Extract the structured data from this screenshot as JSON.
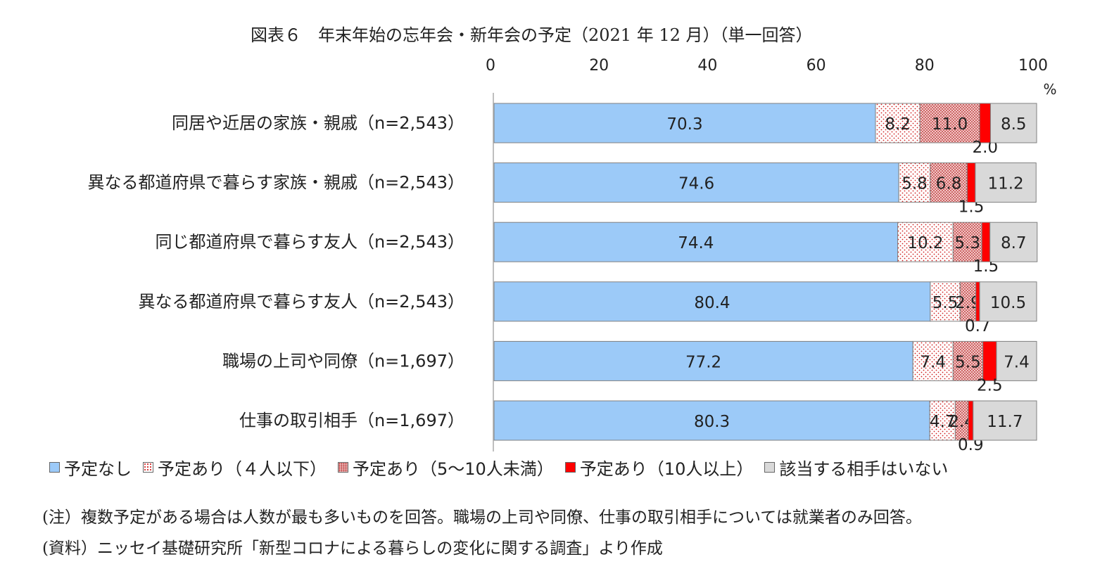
{
  "chart_data": {
    "type": "bar",
    "orientation": "horizontal",
    "stacked": true,
    "title": "図表６　年末年始の忘年会・新年会の予定（2021 年 12 月）（単一回答）",
    "xlim": [
      0,
      100
    ],
    "x_ticks": [
      "0",
      "20",
      "40",
      "60",
      "80",
      "100"
    ],
    "unit": "%",
    "categories": [
      "同居や近居の家族・親戚（n=2,543）",
      "異なる都道府県で暮らす家族・親戚（n=2,543）",
      "同じ都道府県で暮らす友人（n=2,543）",
      "異なる都道府県で暮らす友人（n=2,543）",
      "職場の上司や同僚（n=1,697）",
      "仕事の取引相手（n=1,697）"
    ],
    "series": [
      {
        "name": "予定なし",
        "color": "#9ccaf8",
        "pattern": "solid",
        "values": [
          70.3,
          74.6,
          74.4,
          80.4,
          77.2,
          80.3
        ]
      },
      {
        "name": "予定あり（４人以下）",
        "color": "#ffffff",
        "pattern": "dots-sparse",
        "values": [
          8.2,
          5.8,
          10.2,
          5.5,
          7.4,
          4.7
        ]
      },
      {
        "name": "予定あり（5～10人未満）",
        "color": "#e8a0a0",
        "pattern": "dots-dense",
        "values": [
          11.0,
          6.8,
          5.3,
          2.9,
          5.5,
          2.4
        ]
      },
      {
        "name": "予定あり（10人以上）",
        "color": "#ff0000",
        "pattern": "solid",
        "values": [
          2.0,
          1.5,
          1.5,
          0.7,
          2.5,
          0.9
        ]
      },
      {
        "name": "該当する相手はいない",
        "color": "#d9d9d9",
        "pattern": "solid",
        "values": [
          8.5,
          11.2,
          8.7,
          10.5,
          7.4,
          11.7
        ]
      }
    ],
    "value_labels": [
      [
        "70.3",
        "8.2",
        "11.0",
        "2.0",
        "8.5"
      ],
      [
        "74.6",
        "5.8",
        "6.8",
        "1.5",
        "11.2"
      ],
      [
        "74.4",
        "10.2",
        "5.3",
        "1.5",
        "8.7"
      ],
      [
        "80.4",
        "5.5",
        "2.9",
        "0.7",
        "10.5"
      ],
      [
        "77.2",
        "7.4",
        "5.5",
        "2.5",
        "7.4"
      ],
      [
        "80.3",
        "4.7",
        "2.4",
        "0.9",
        "11.7"
      ]
    ],
    "legend_position": "bottom",
    "grid": false
  },
  "notes": [
    "(注）複数予定がある場合は人数が最も多いものを回答。職場の上司や同僚、仕事の取引相手については就業者のみ回答。",
    "(資料）ニッセイ基礎研究所「新型コロナによる暮らしの変化に関する調査」より作成"
  ]
}
